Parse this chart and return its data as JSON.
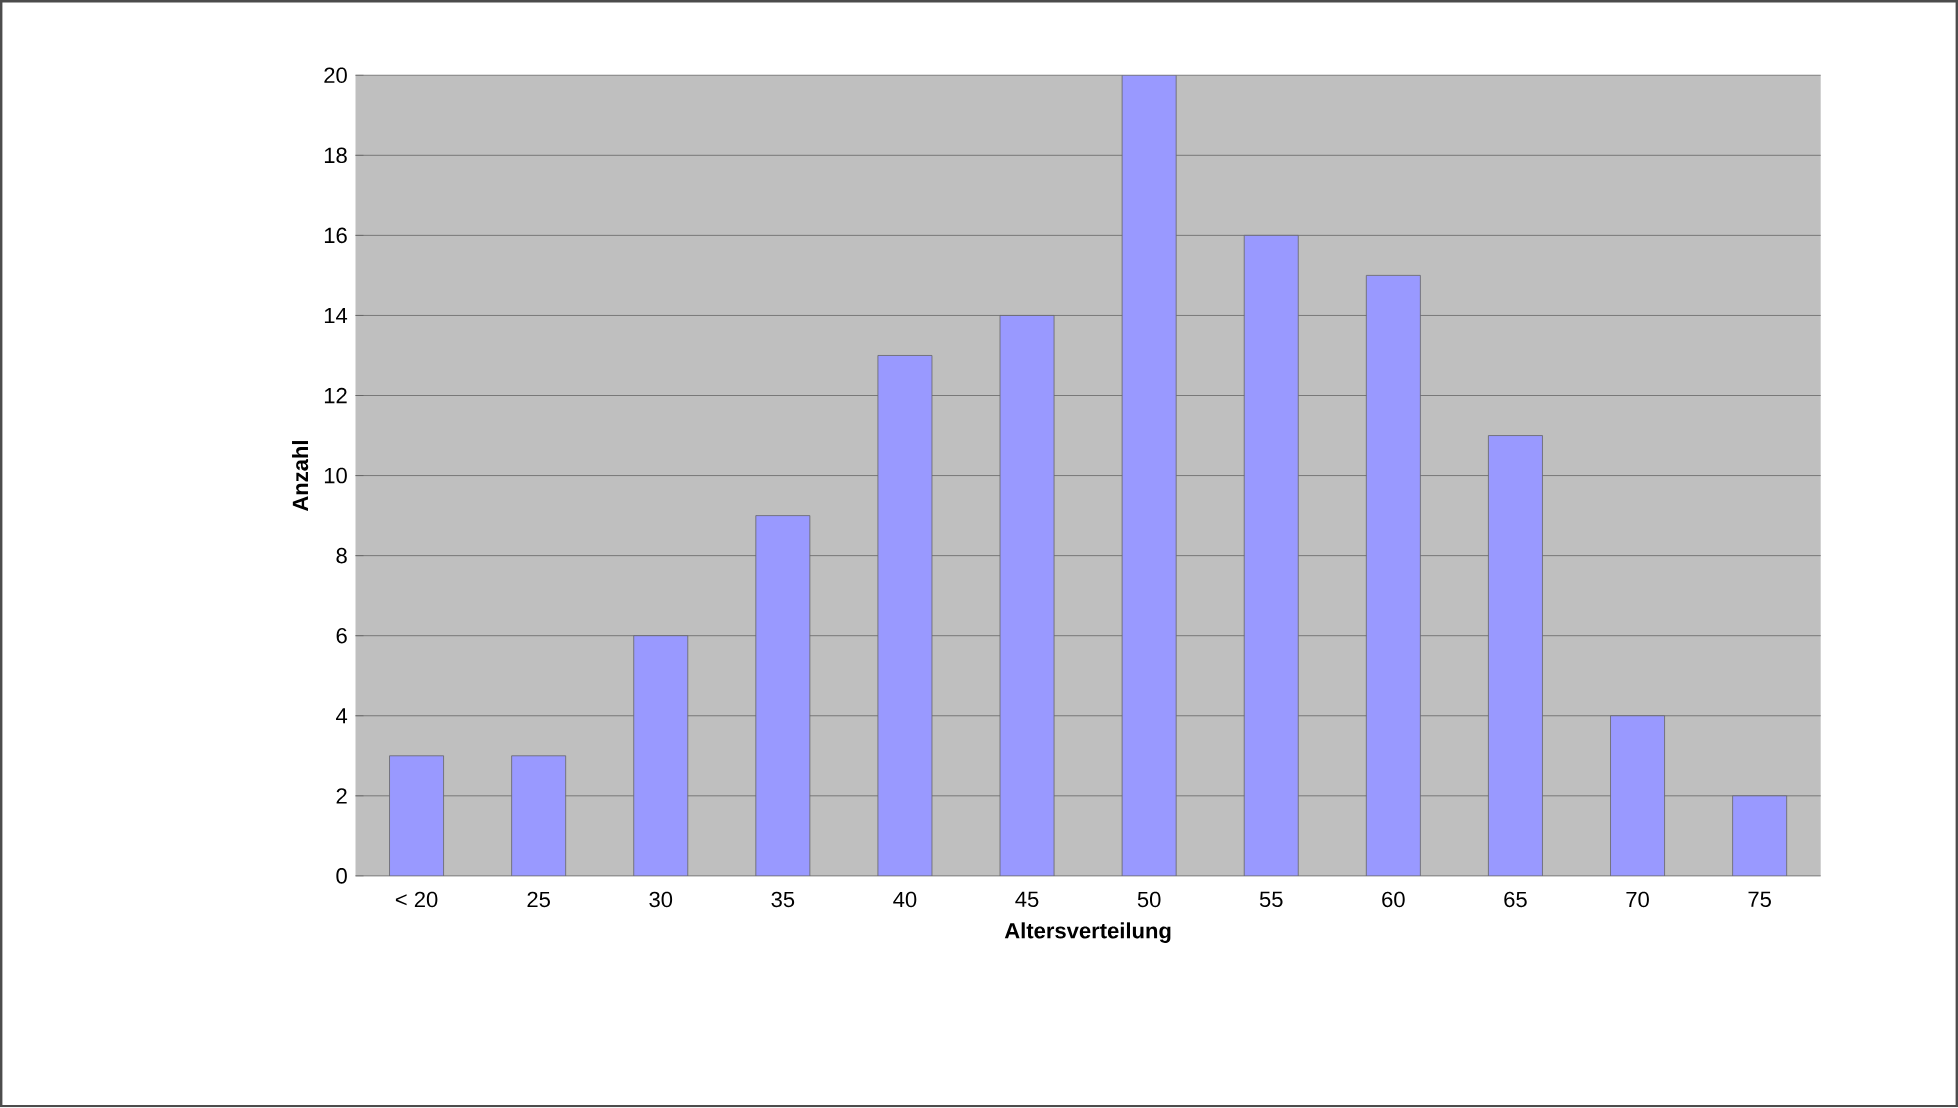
{
  "chart_data": {
    "type": "bar",
    "xlabel": "Altersverteilung",
    "ylabel": "Anzahl",
    "categories": [
      "< 20",
      "25",
      "30",
      "35",
      "40",
      "45",
      "50",
      "55",
      "60",
      "65",
      "70",
      "75"
    ],
    "values": [
      3,
      3,
      6,
      9,
      13,
      14,
      20,
      16,
      15,
      11,
      4,
      2
    ],
    "color": "#9999ff",
    "ylim": [
      0,
      20
    ],
    "yticks": [
      0,
      2,
      4,
      6,
      8,
      10,
      12,
      14,
      16,
      18,
      20
    ],
    "grid": "y"
  }
}
